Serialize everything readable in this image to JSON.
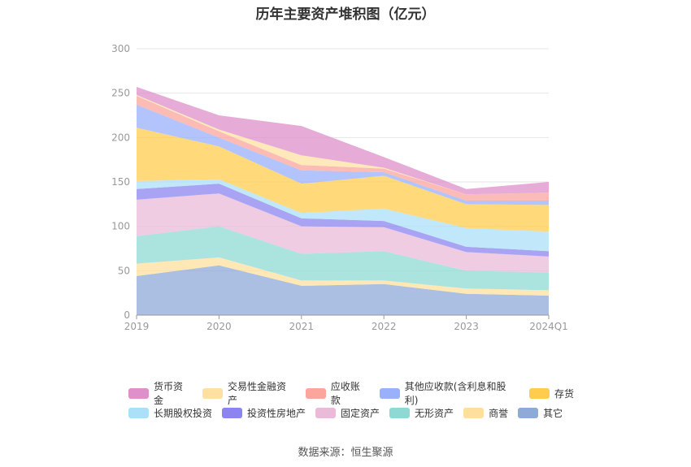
{
  "chart_data": {
    "type": "area",
    "title": "历年主要资产堆积图（亿元）",
    "categories": [
      "2019",
      "2020",
      "2021",
      "2022",
      "2023",
      "2024Q1"
    ],
    "ylim": [
      0,
      300
    ],
    "yticks": [
      0,
      50,
      100,
      150,
      200,
      250,
      300
    ],
    "grid": true,
    "legend_position": "bottom",
    "series": [
      {
        "name": "其它",
        "color": "#8eaad8",
        "values": [
          44,
          56,
          33,
          35,
          24,
          22
        ]
      },
      {
        "name": "商誉",
        "color": "#ffdf9e",
        "values": [
          14,
          9,
          6,
          4,
          6,
          6
        ]
      },
      {
        "name": "无形资产",
        "color": "#8fd9d4",
        "values": [
          31,
          35,
          30,
          33,
          20,
          20
        ]
      },
      {
        "name": "固定资产",
        "color": "#eabbd8",
        "values": [
          41,
          37,
          31,
          27,
          21,
          18
        ]
      },
      {
        "name": "投资性房地产",
        "color": "#8c84f0",
        "values": [
          12,
          11,
          9,
          7,
          6,
          6
        ]
      },
      {
        "name": "长期股权投资",
        "color": "#acdff8",
        "values": [
          9,
          5,
          6,
          14,
          21,
          22
        ]
      },
      {
        "name": "存货",
        "color": "#ffcc4d",
        "values": [
          60,
          37,
          33,
          37,
          27,
          30
        ]
      },
      {
        "name": "其他应收款(含利息和股利)",
        "color": "#99b0fb",
        "values": [
          26,
          10,
          15,
          4,
          4,
          5
        ]
      },
      {
        "name": "应收账款",
        "color": "#fba59c",
        "values": [
          10,
          7,
          6,
          4,
          7,
          9
        ]
      },
      {
        "name": "交易性金融资产",
        "color": "#ffe0a3",
        "values": [
          1,
          2,
          11,
          1,
          0,
          0
        ]
      },
      {
        "name": "货币资金",
        "color": "#df8fc9",
        "values": [
          9,
          16,
          33,
          12,
          6,
          12
        ]
      }
    ],
    "legend_order": [
      [
        "货币资金",
        "交易性金融资产",
        "应收账款",
        "其他应收款(含利息和股利)",
        "存货"
      ],
      [
        "长期股权投资",
        "投资性房地产",
        "固定资产",
        "无形资产",
        "商誉",
        "其它"
      ]
    ]
  },
  "source_text": "数据来源：恒生聚源"
}
